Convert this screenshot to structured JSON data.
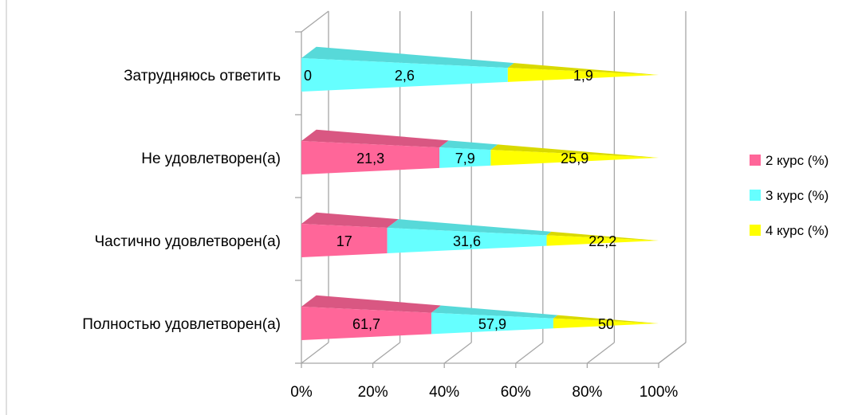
{
  "chart_data": {
    "type": "bar",
    "orientation": "horizontal",
    "stacked": "percent",
    "style_3d": true,
    "categories": [
      "Полностью удовлетворен(а)",
      "Частично удовлетворен(а)",
      "Не удовлетворен(а)",
      "Затрудняюсь ответить"
    ],
    "series": [
      {
        "name": "2 курс (%)",
        "color": "#ff6699",
        "values": [
          61.7,
          17,
          21.3,
          0
        ]
      },
      {
        "name": "3 курс (%)",
        "color": "#66ffff",
        "values": [
          57.9,
          31.6,
          7.9,
          2.6
        ]
      },
      {
        "name": "4 курс (%)",
        "color": "#ffff00",
        "values": [
          50,
          22.2,
          25.9,
          1.9
        ]
      }
    ],
    "data_labels": [
      [
        "61,7",
        "17",
        "21,3",
        "0"
      ],
      [
        "57,9",
        "31,6",
        "7,9",
        "2,6"
      ],
      [
        "50",
        "22,2",
        "25,9",
        "1,9"
      ]
    ],
    "x_ticks": [
      "0%",
      "20%",
      "40%",
      "60%",
      "80%",
      "100%"
    ],
    "xlim": [
      0,
      100
    ],
    "grid": true,
    "legend_position": "right",
    "title": "",
    "xlabel": "",
    "ylabel": ""
  }
}
